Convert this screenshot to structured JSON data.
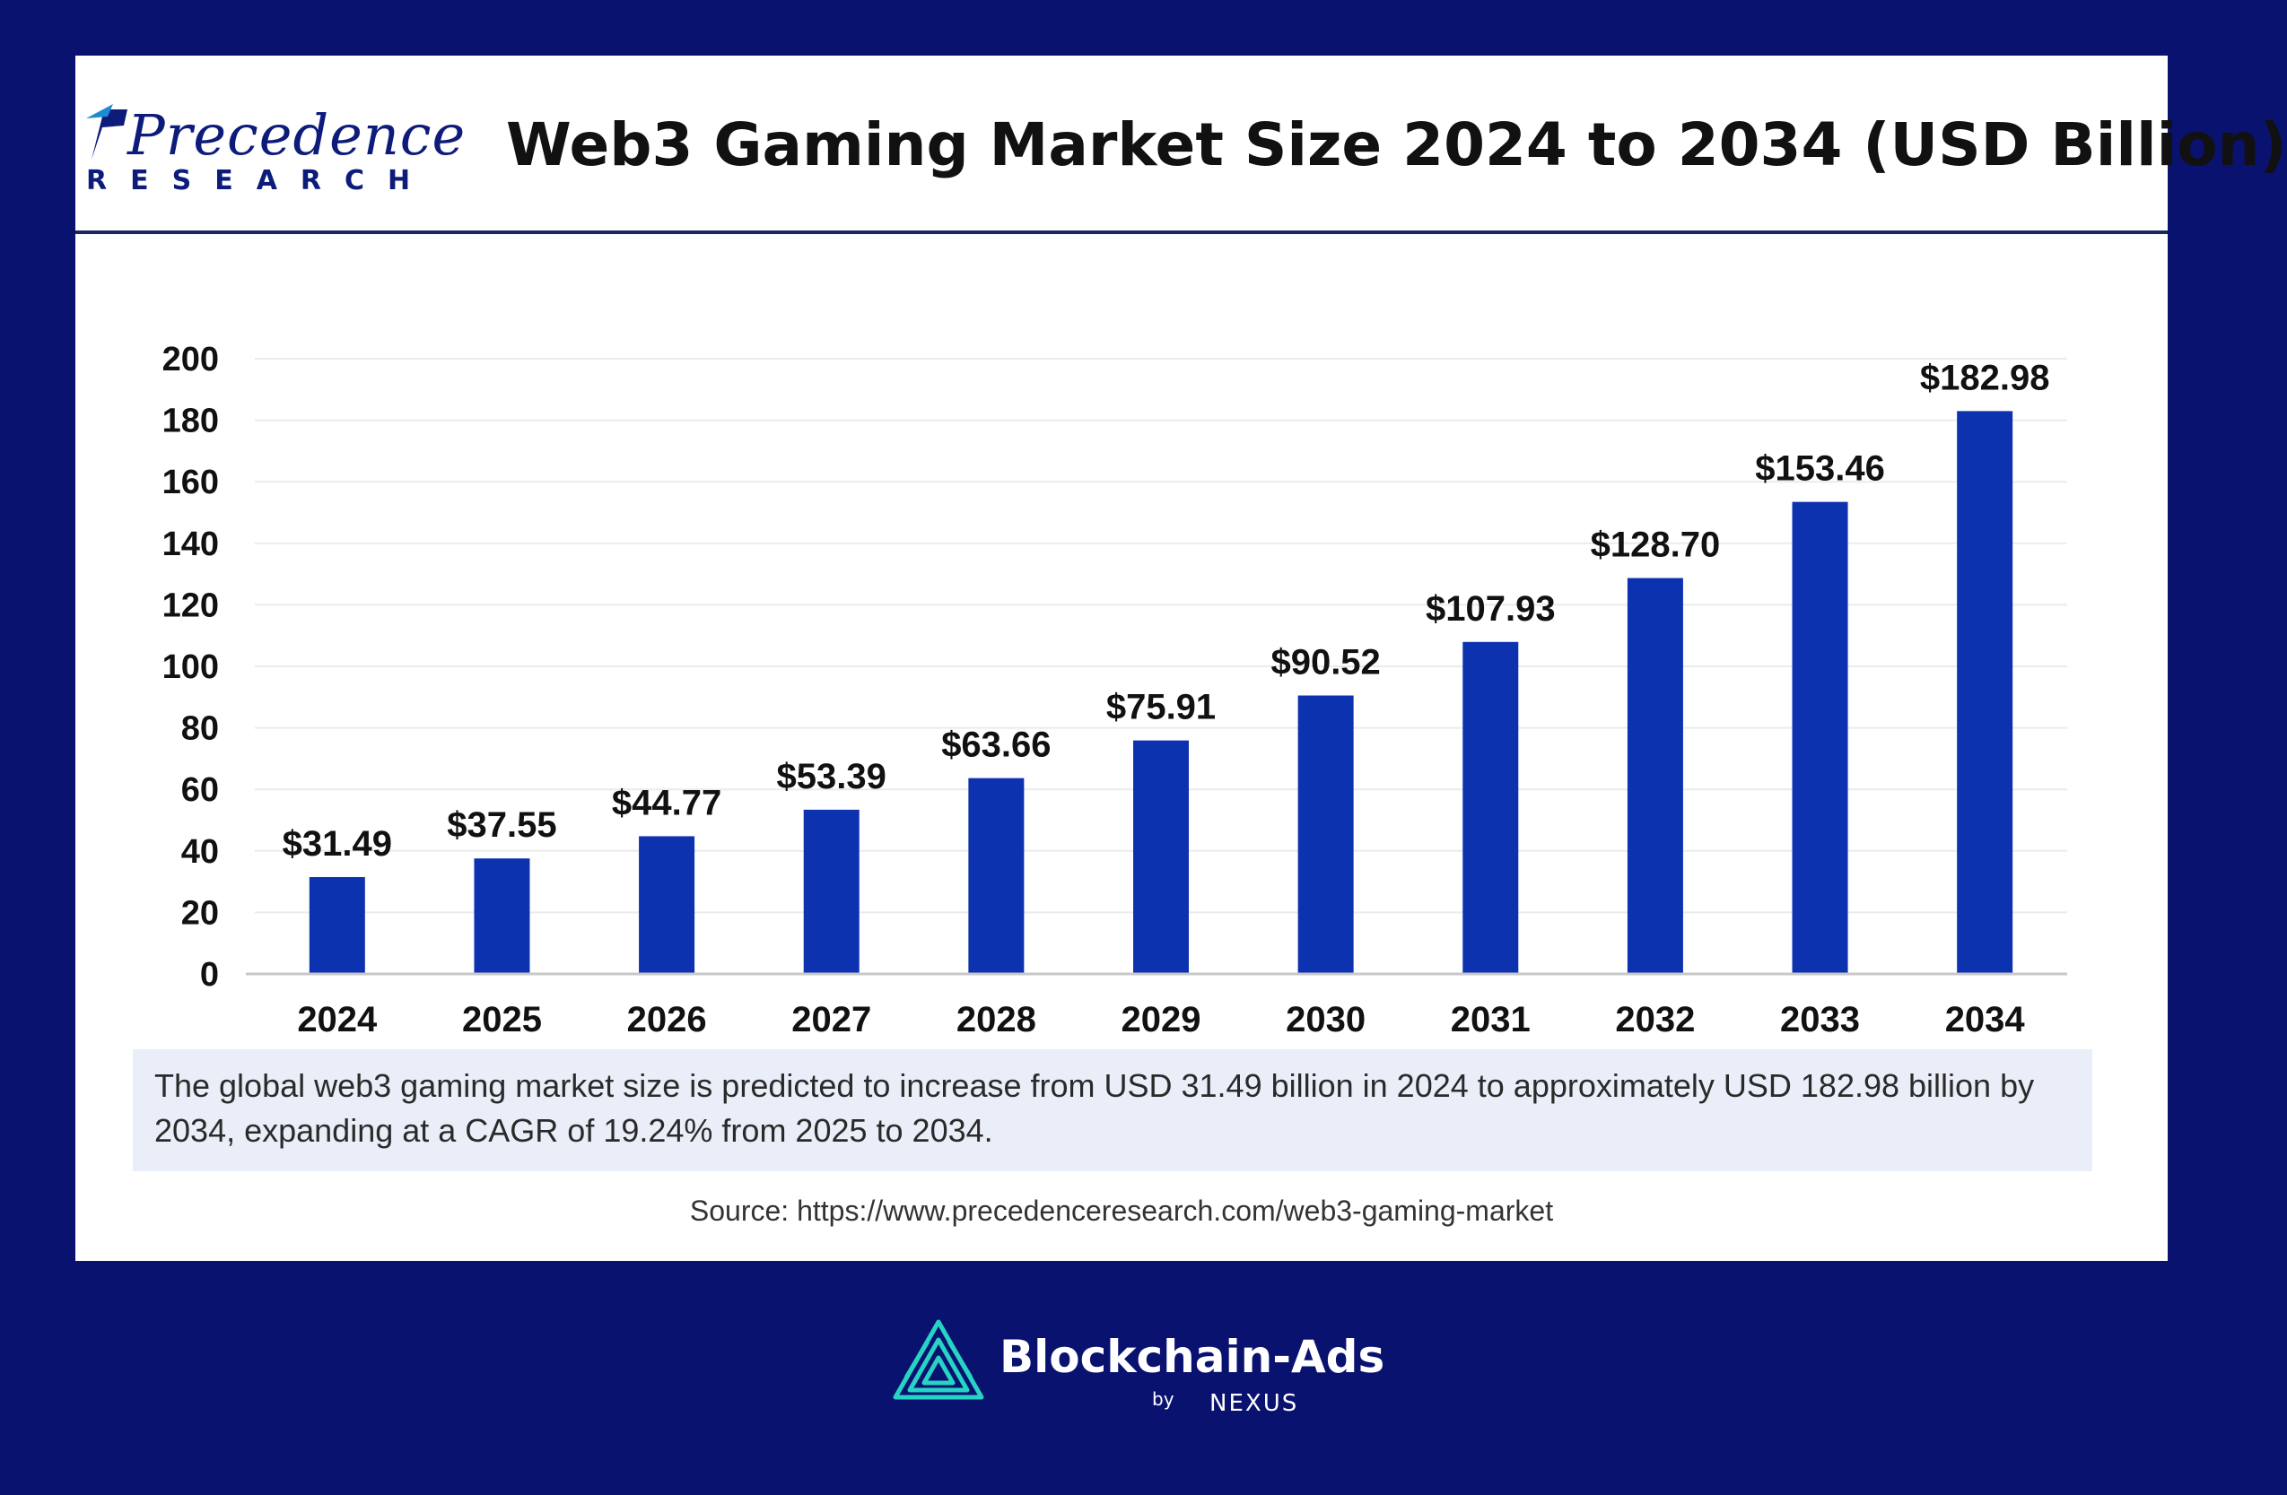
{
  "logo": {
    "word": "Precedence",
    "sub": "RESEARCH"
  },
  "header": {
    "title": "Web3 Gaming Market Size 2024 to 2034 (USD Billion)"
  },
  "chart_data": {
    "type": "bar",
    "title": "Web3 Gaming Market Size 2024 to 2034 (USD Billion)",
    "categories": [
      "2024",
      "2025",
      "2026",
      "2027",
      "2028",
      "2029",
      "2030",
      "2031",
      "2032",
      "2033",
      "2034"
    ],
    "values": [
      31.49,
      37.55,
      44.77,
      53.39,
      63.66,
      75.91,
      90.52,
      107.93,
      128.7,
      153.46,
      182.98
    ],
    "data_labels": [
      "$31.49",
      "$37.55",
      "$44.77",
      "$53.39",
      "$63.66",
      "$75.91",
      "$90.52",
      "$107.93",
      "$128.70",
      "$153.46",
      "$182.98"
    ],
    "yticks": [
      0,
      20,
      40,
      60,
      80,
      100,
      120,
      140,
      160,
      180,
      200
    ],
    "ylim": [
      0,
      200
    ],
    "xlabel": "",
    "ylabel": "",
    "grid": true,
    "bar_color": "#0d32b0"
  },
  "summary": "The global web3 gaming market size is predicted to increase from USD 31.49 billion in 2024 to approximately USD 182.98 billion by 2034, expanding at a CAGR of 19.24% from 2025 to 2034.",
  "source": "Source: https://www.precedenceresearch.com/web3-gaming-market",
  "brand": {
    "name": "Blockchain-Ads",
    "by": "by",
    "partner": "NEXUS"
  },
  "colors": {
    "background": "#0a1270",
    "accent": "#0d32b0",
    "brand_teal": "#27d3c4"
  }
}
